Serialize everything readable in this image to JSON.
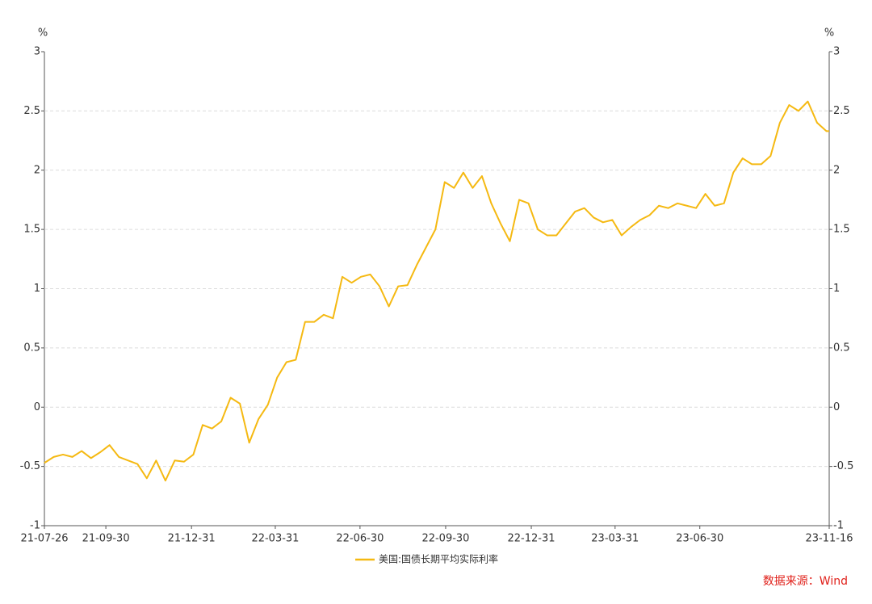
{
  "chart_data": {
    "type": "line",
    "ylabel": "%",
    "y2label": "%",
    "source": "数据来源：Wind",
    "x": [
      "21-07-26",
      "21-08-05",
      "21-08-15",
      "21-08-25",
      "21-09-04",
      "21-09-14",
      "21-09-24",
      "21-10-04",
      "21-10-14",
      "21-10-24",
      "21-11-03",
      "21-11-13",
      "21-11-23",
      "21-12-03",
      "21-12-13",
      "21-12-23",
      "22-01-02",
      "22-01-12",
      "22-01-22",
      "22-02-01",
      "22-02-11",
      "22-02-21",
      "22-03-03",
      "22-03-13",
      "22-03-23",
      "22-04-02",
      "22-04-12",
      "22-04-22",
      "22-05-02",
      "22-05-12",
      "22-05-22",
      "22-06-01",
      "22-06-11",
      "22-06-21",
      "22-07-01",
      "22-07-11",
      "22-07-21",
      "22-07-31",
      "22-08-10",
      "22-08-20",
      "22-08-30",
      "22-09-09",
      "22-09-19",
      "22-09-29",
      "22-10-09",
      "22-10-19",
      "22-10-29",
      "22-11-08",
      "22-11-18",
      "22-11-28",
      "22-12-08",
      "22-12-18",
      "22-12-28",
      "23-01-07",
      "23-01-17",
      "23-01-27",
      "23-02-06",
      "23-02-16",
      "23-02-26",
      "23-03-08",
      "23-03-18",
      "23-03-28",
      "23-04-07",
      "23-04-17",
      "23-04-27",
      "23-05-07",
      "23-05-17",
      "23-05-27",
      "23-06-06",
      "23-06-16",
      "23-06-26",
      "23-07-06",
      "23-07-16",
      "23-07-26",
      "23-08-05",
      "23-08-15",
      "23-08-25",
      "23-09-04",
      "23-09-14",
      "23-09-24",
      "23-10-04",
      "23-10-14",
      "23-10-24",
      "23-11-03",
      "23-11-13",
      "23-11-16"
    ],
    "series": [
      {
        "name": "美国:国债长期平均实际利率",
        "color": "#f5b912",
        "values": [
          -0.47,
          -0.42,
          -0.4,
          -0.42,
          -0.37,
          -0.43,
          -0.38,
          -0.32,
          -0.42,
          -0.45,
          -0.48,
          -0.6,
          -0.45,
          -0.62,
          -0.45,
          -0.46,
          -0.4,
          -0.15,
          -0.18,
          -0.12,
          0.08,
          0.03,
          -0.3,
          -0.1,
          0.02,
          0.25,
          0.38,
          0.4,
          0.72,
          0.72,
          0.78,
          0.75,
          1.1,
          1.05,
          1.1,
          1.12,
          1.02,
          0.85,
          1.02,
          1.03,
          1.2,
          1.35,
          1.5,
          1.9,
          1.85,
          1.98,
          1.85,
          1.95,
          1.72,
          1.55,
          1.4,
          1.75,
          1.72,
          1.5,
          1.45,
          1.45,
          1.55,
          1.65,
          1.68,
          1.6,
          1.56,
          1.58,
          1.45,
          1.52,
          1.58,
          1.62,
          1.7,
          1.68,
          1.72,
          1.7,
          1.68,
          1.8,
          1.7,
          1.72,
          1.98,
          2.1,
          2.05,
          2.05,
          2.12,
          2.4,
          2.55,
          2.5,
          2.58,
          2.4,
          2.33,
          2.33
        ]
      }
    ],
    "xlim": [
      "21-07-26",
      "23-11-16"
    ],
    "xticks": [
      "21-07-26",
      "21-09-30",
      "21-12-31",
      "22-03-31",
      "22-06-30",
      "22-09-30",
      "22-12-31",
      "23-03-31",
      "23-06-30",
      "23-11-16"
    ],
    "ylim": [
      -1,
      3
    ],
    "yticks": [
      -1,
      -0.5,
      0,
      0.5,
      1,
      1.5,
      2,
      2.5,
      3
    ],
    "y2lim": [
      -1,
      3
    ],
    "y2ticks": [
      -1,
      -0.5,
      0,
      0.5,
      1,
      1.5,
      2,
      2.5,
      3
    ],
    "grid": true,
    "legend": "bottom"
  }
}
